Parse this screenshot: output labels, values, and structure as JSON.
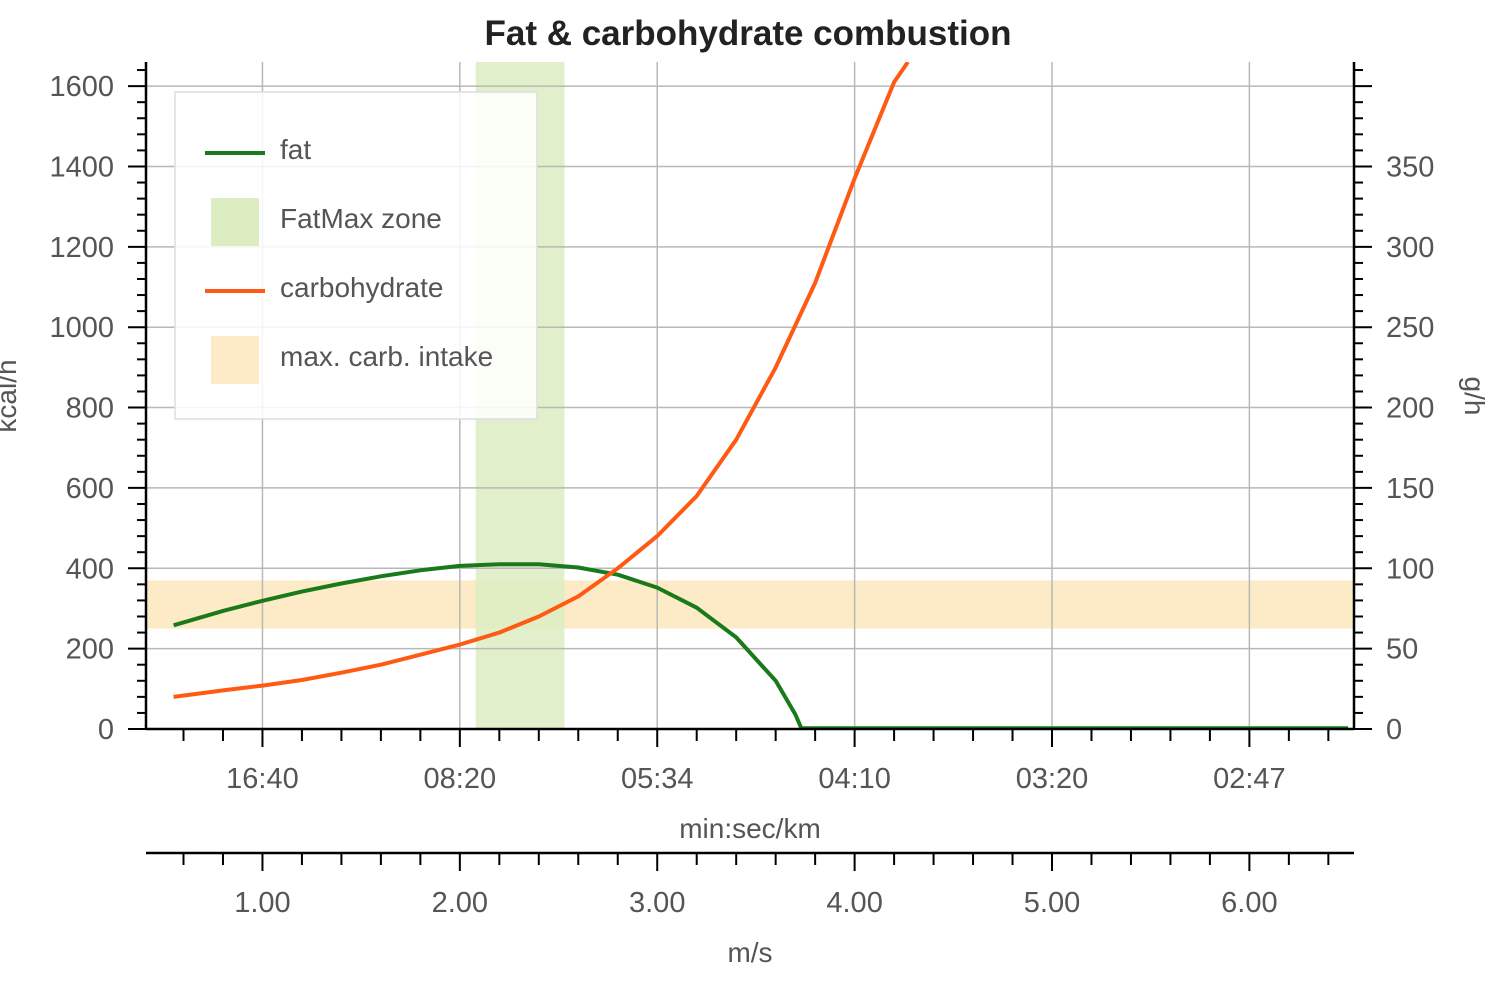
{
  "chart_data": {
    "type": "line",
    "title": "Fat & carbohydrate combustion",
    "left_axis": {
      "label": "kcal/h",
      "ylim": [
        0,
        1660
      ],
      "ticks": [
        0,
        200,
        400,
        600,
        800,
        1000,
        1200,
        1400,
        1600
      ],
      "tick_labels": [
        "0",
        "200",
        "400",
        "600",
        "800",
        "1000",
        "1200",
        "1400",
        "1600"
      ]
    },
    "right_axis": {
      "label": "g/h",
      "ticks": [
        0,
        50,
        100,
        150,
        200,
        250,
        300,
        350
      ],
      "tick_labels": [
        "0",
        "50",
        "100",
        "150",
        "200",
        "250",
        "300",
        "350"
      ],
      "kcal_per_gram": 4
    },
    "x_axis": {
      "label": "m/s",
      "xlim": [
        0.41,
        6.53
      ],
      "ticks": [
        1,
        2,
        3,
        4,
        5,
        6
      ],
      "tick_labels": [
        "1.00",
        "2.00",
        "3.00",
        "4.00",
        "5.00",
        "6.00"
      ]
    },
    "pace_axis": {
      "label": "min:sec/km",
      "ticks": [
        1,
        2,
        3,
        4,
        5,
        6
      ],
      "tick_labels": [
        "16:40",
        "08:20",
        "05:34",
        "04:10",
        "03:20",
        "02:47"
      ]
    },
    "grid": true,
    "legend": {
      "placement": "top-left",
      "items": [
        {
          "label": "fat",
          "kind": "line",
          "color": "#1a7a1a"
        },
        {
          "label": "FatMax zone",
          "kind": "patch",
          "color": "#dcedc1"
        },
        {
          "label": "carbohydrate",
          "kind": "line",
          "color": "#ff5a14"
        },
        {
          "label": "max. carb. intake",
          "kind": "patch",
          "color": "#fdebc8"
        }
      ]
    },
    "fatmax_zone": {
      "x_range": [
        2.08,
        2.53
      ],
      "color": "#dcedc1"
    },
    "max_carb_intake": {
      "y_range": [
        250,
        370
      ],
      "color": "#fdebc8"
    },
    "series": [
      {
        "name": "fat",
        "color": "#1a7a1a",
        "x": [
          0.55,
          0.8,
          1.0,
          1.2,
          1.4,
          1.6,
          1.8,
          2.0,
          2.2,
          2.4,
          2.6,
          2.8,
          3.0,
          3.2,
          3.4,
          3.6,
          3.7,
          3.73,
          4.0,
          4.5,
          5.0,
          5.5,
          6.0,
          6.5
        ],
        "y": [
          258,
          294,
          319,
          342,
          362,
          380,
          395,
          406,
          410,
          410,
          402,
          384,
          352,
          302,
          228,
          120,
          36,
          2,
          2,
          2,
          2,
          2,
          2,
          2
        ]
      },
      {
        "name": "carbohydrate",
        "color": "#ff5a14",
        "x": [
          0.55,
          0.8,
          1.0,
          1.2,
          1.4,
          1.6,
          1.8,
          2.0,
          2.2,
          2.4,
          2.6,
          2.8,
          3.0,
          3.2,
          3.4,
          3.6,
          3.8,
          4.0,
          4.2,
          4.27
        ],
        "y": [
          80,
          96,
          108,
          122,
          140,
          160,
          185,
          210,
          240,
          280,
          330,
          400,
          480,
          580,
          720,
          900,
          1110,
          1370,
          1610,
          1660
        ]
      }
    ]
  }
}
